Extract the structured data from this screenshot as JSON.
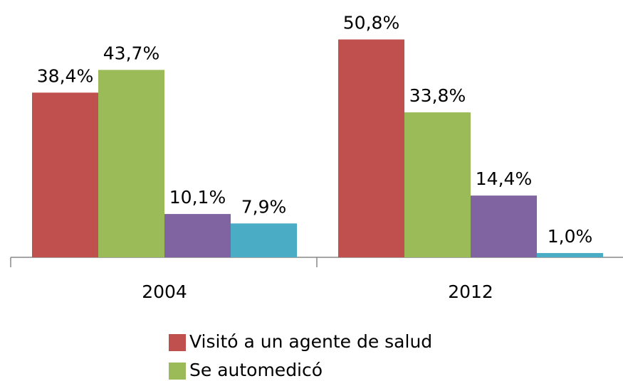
{
  "chart_data": {
    "type": "bar",
    "categories": [
      "2004",
      "2012"
    ],
    "series": [
      {
        "name": "Visitó a un agente de salud",
        "color": "#c0504d",
        "values": [
          38.4,
          50.8
        ],
        "value_labels": [
          "38,4%",
          "50,8%"
        ]
      },
      {
        "name": "Se automedicó",
        "color": "#9bbb59",
        "values": [
          43.7,
          33.8
        ],
        "value_labels": [
          "43,7%",
          "33,8%"
        ]
      },
      {
        "color": "#8064a2",
        "values": [
          10.1,
          14.4
        ],
        "value_labels": [
          "10,1%",
          "14,4%"
        ]
      },
      {
        "color": "#4bacc6",
        "values": [
          7.9,
          1.0
        ],
        "value_labels": [
          "7,9%",
          "1,0%"
        ]
      }
    ],
    "ylim": [
      0,
      60
    ]
  }
}
